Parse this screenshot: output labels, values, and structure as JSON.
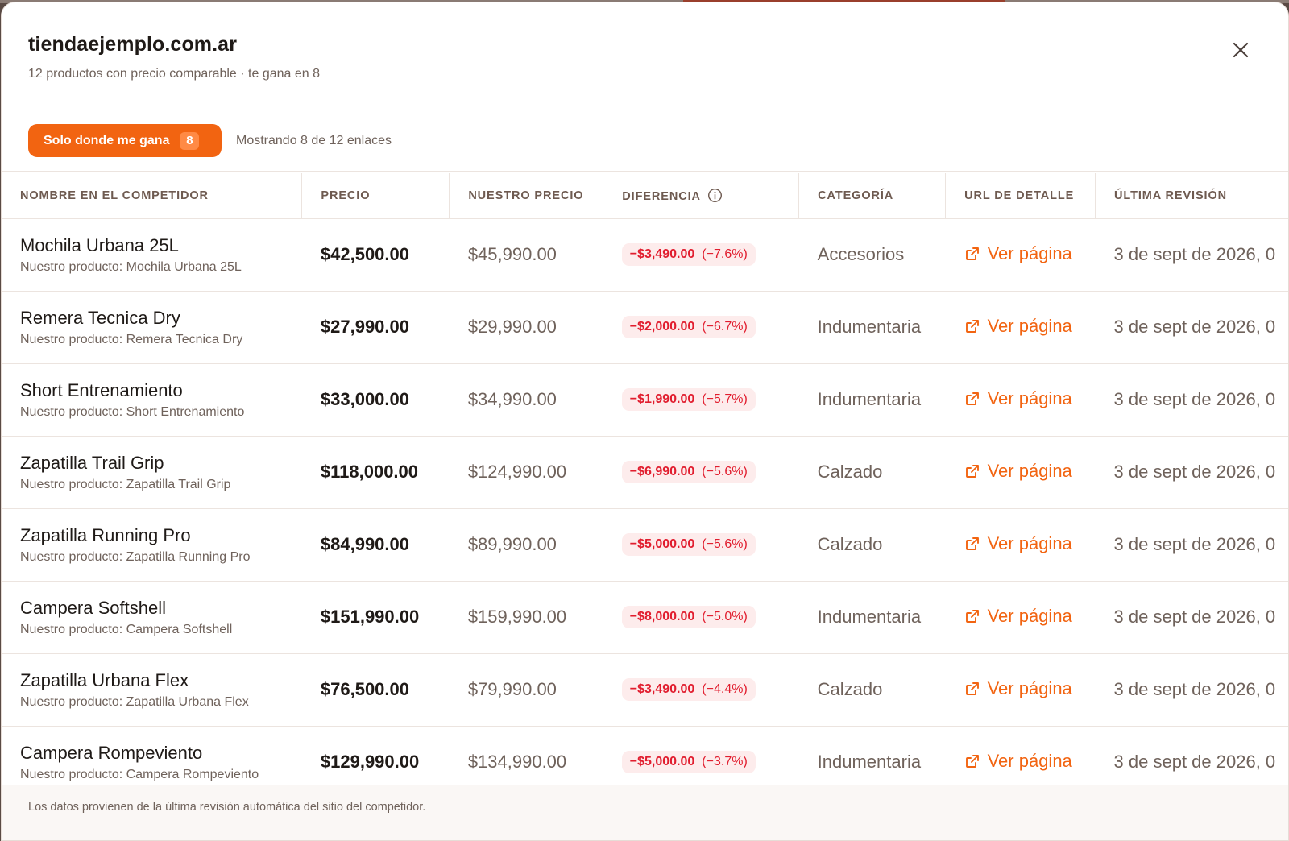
{
  "header": {
    "title": "tiendaejemplo.com.ar",
    "subtitle": "12 productos con precio comparable · te gana en 8",
    "close_icon": "close-icon"
  },
  "toolbar": {
    "filter_label": "Solo donde me gana",
    "filter_count": "8",
    "showing_text": "Mostrando 8 de 12 enlaces"
  },
  "table": {
    "headers": {
      "name": "NOMBRE EN EL COMPETIDOR",
      "price": "PRECIO",
      "ours": "NUESTRO PRECIO",
      "diff": "DIFERENCIA",
      "category": "CATEGORÍA",
      "url": "URL DE DETALLE",
      "last": "ÚLTIMA REVISIÓN"
    },
    "rows": [
      {
        "name": "Mochila Urbana 25L",
        "sub": "Nuestro producto: Mochila Urbana 25L",
        "price": "$42,500.00",
        "ours": "$45,990.00",
        "diff": "−$3,490.00",
        "pct": "(−7.6%)",
        "category": "Accesorios",
        "link": "Ver página",
        "date": "3 de sept de 2026, 0"
      },
      {
        "name": "Remera Tecnica Dry",
        "sub": "Nuestro producto: Remera Tecnica Dry",
        "price": "$27,990.00",
        "ours": "$29,990.00",
        "diff": "−$2,000.00",
        "pct": "(−6.7%)",
        "category": "Indumentaria",
        "link": "Ver página",
        "date": "3 de sept de 2026, 0"
      },
      {
        "name": "Short Entrenamiento",
        "sub": "Nuestro producto: Short Entrenamiento",
        "price": "$33,000.00",
        "ours": "$34,990.00",
        "diff": "−$1,990.00",
        "pct": "(−5.7%)",
        "category": "Indumentaria",
        "link": "Ver página",
        "date": "3 de sept de 2026, 0"
      },
      {
        "name": "Zapatilla Trail Grip",
        "sub": "Nuestro producto: Zapatilla Trail Grip",
        "price": "$118,000.00",
        "ours": "$124,990.00",
        "diff": "−$6,990.00",
        "pct": "(−5.6%)",
        "category": "Calzado",
        "link": "Ver página",
        "date": "3 de sept de 2026, 0"
      },
      {
        "name": "Zapatilla Running Pro",
        "sub": "Nuestro producto: Zapatilla Running Pro",
        "price": "$84,990.00",
        "ours": "$89,990.00",
        "diff": "−$5,000.00",
        "pct": "(−5.6%)",
        "category": "Calzado",
        "link": "Ver página",
        "date": "3 de sept de 2026, 0"
      },
      {
        "name": "Campera Softshell",
        "sub": "Nuestro producto: Campera Softshell",
        "price": "$151,990.00",
        "ours": "$159,990.00",
        "diff": "−$8,000.00",
        "pct": "(−5.0%)",
        "category": "Indumentaria",
        "link": "Ver página",
        "date": "3 de sept de 2026, 0"
      },
      {
        "name": "Zapatilla Urbana Flex",
        "sub": "Nuestro producto: Zapatilla Urbana Flex",
        "price": "$76,500.00",
        "ours": "$79,990.00",
        "diff": "−$3,490.00",
        "pct": "(−4.4%)",
        "category": "Calzado",
        "link": "Ver página",
        "date": "3 de sept de 2026, 0"
      },
      {
        "name": "Campera Rompeviento",
        "sub": "Nuestro producto: Campera Rompeviento",
        "price": "$129,990.00",
        "ours": "$134,990.00",
        "diff": "−$5,000.00",
        "pct": "(−3.7%)",
        "category": "Indumentaria",
        "link": "Ver página",
        "date": "3 de sept de 2026, 0"
      }
    ]
  },
  "footer": {
    "note": "Los datos provienen de la última revisión automática del sitio del competidor."
  },
  "colors": {
    "accent": "#f26411",
    "negative": "#e11d2e",
    "negative_bg": "#fdecec"
  }
}
